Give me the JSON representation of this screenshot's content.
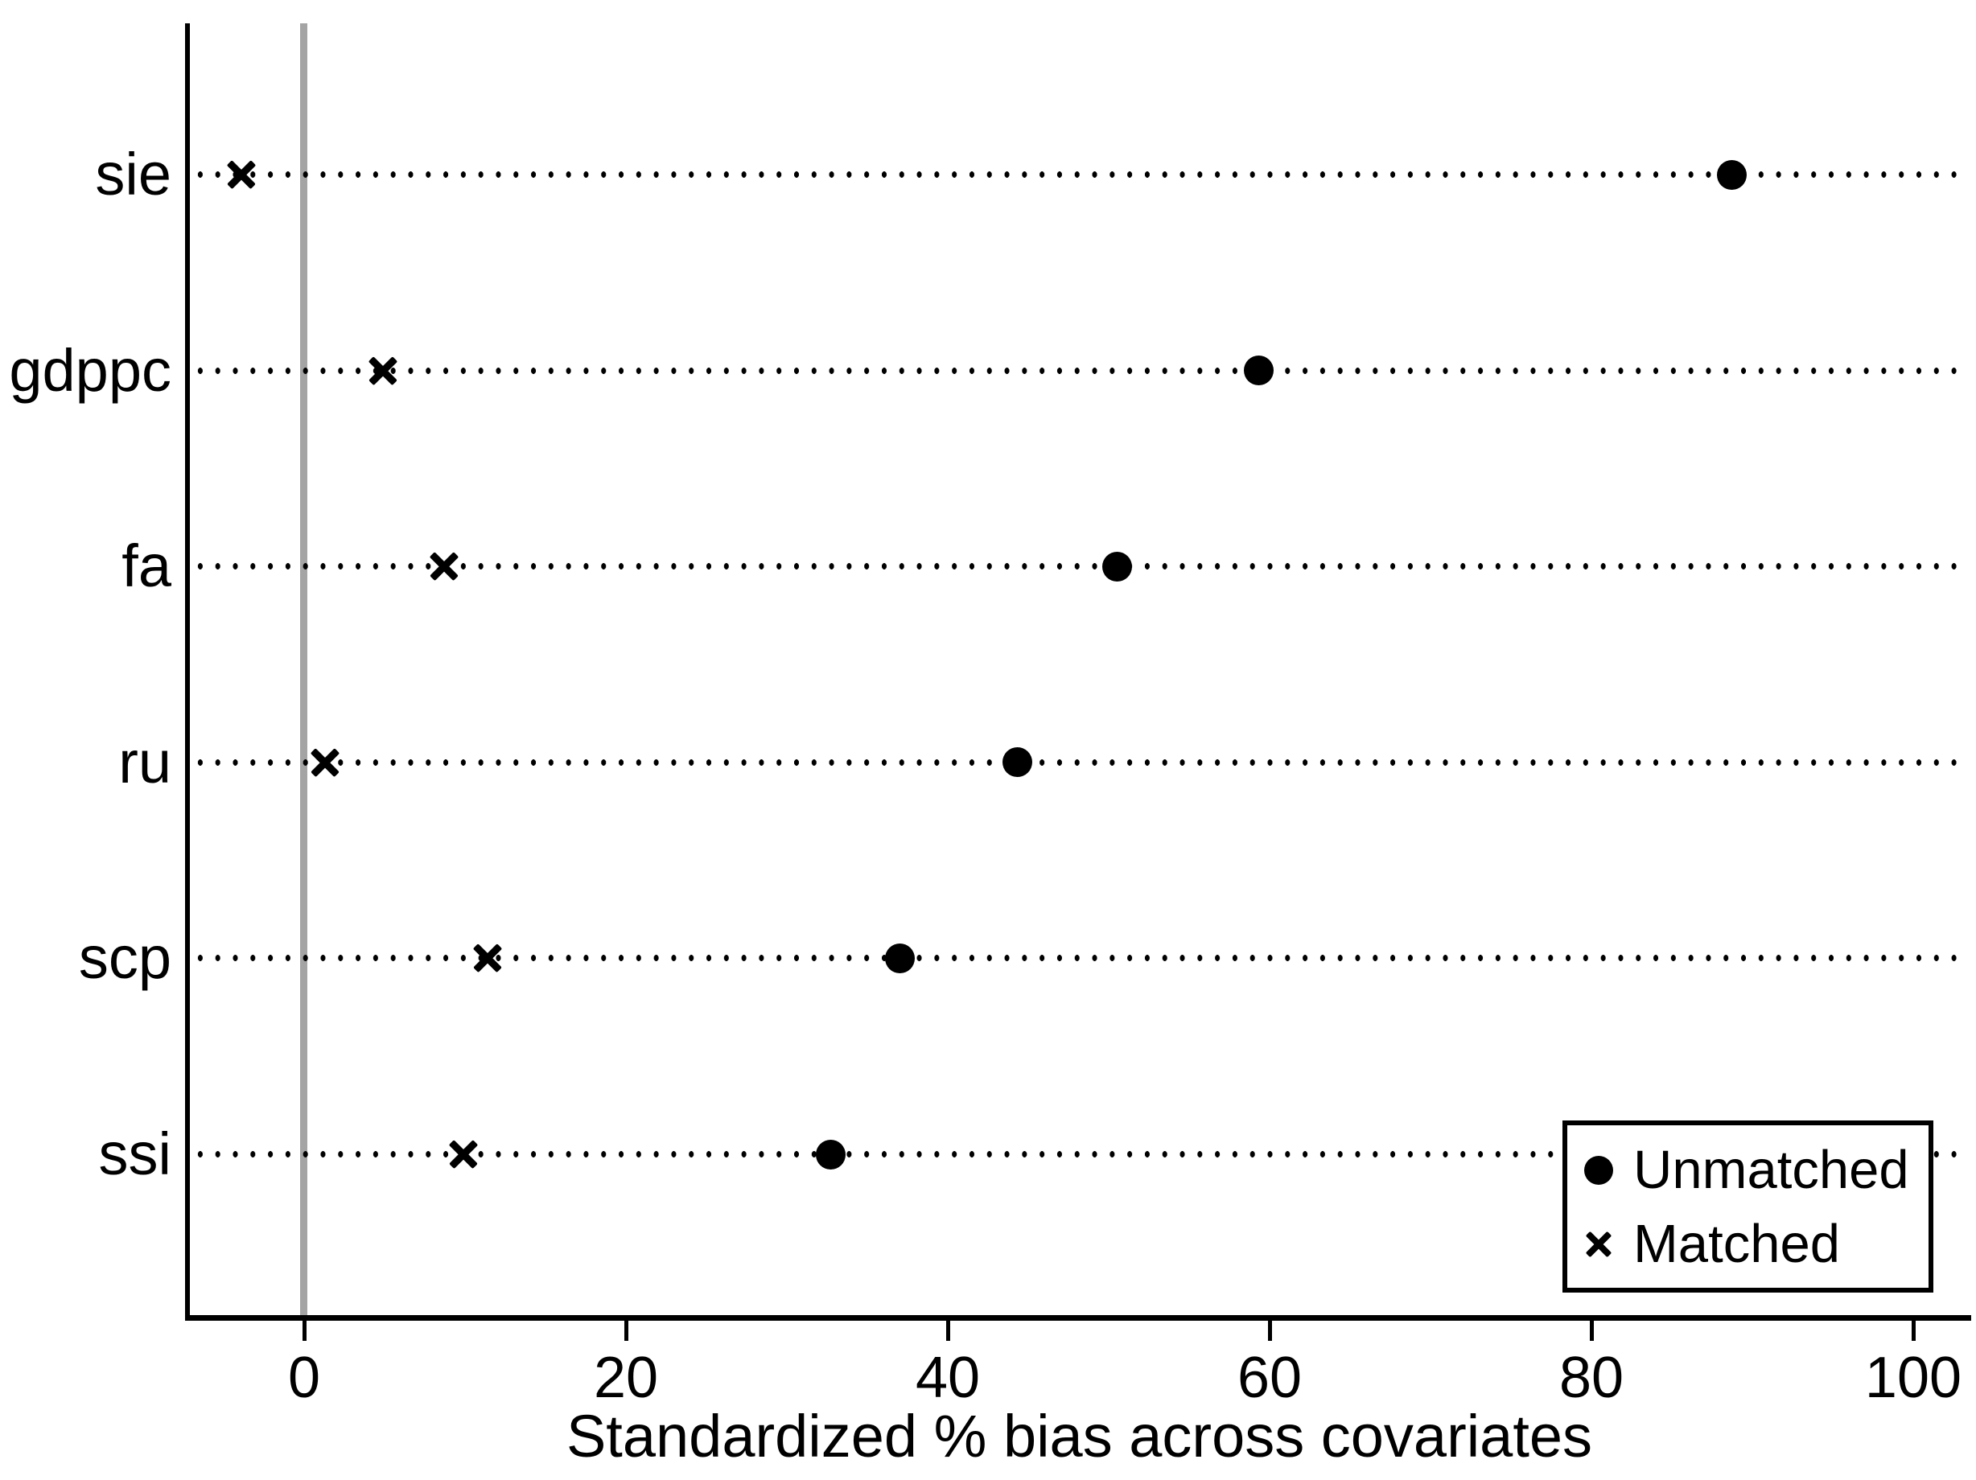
{
  "figure": {
    "background_color": "#ffffff",
    "marker_color": "#000000",
    "zero_line_color": "#a4a4a4"
  },
  "chart_data": {
    "type": "scatter",
    "variant": "covariate-balance-dot-plot",
    "title": "",
    "xlabel": "Standardized % bias across covariates",
    "ylabel": "",
    "categories": [
      "sie",
      "gdppc",
      "fa",
      "ru",
      "scp",
      "ssi"
    ],
    "series": [
      {
        "name": "Unmatched",
        "marker": "circle",
        "values": [
          88.7,
          59.3,
          50.5,
          44.3,
          37.0,
          32.7
        ]
      },
      {
        "name": "Matched",
        "marker": "x",
        "values": [
          -3.9,
          4.9,
          8.7,
          1.3,
          11.4,
          9.9
        ]
      }
    ],
    "x_ticks": [
      0,
      20,
      40,
      60,
      80,
      100
    ],
    "xlim": [
      -7.3,
      103.5
    ],
    "zero_reference_line": 0,
    "grid": "dotted horizontal guide line per category",
    "legend_position": "inside bottom-right"
  }
}
